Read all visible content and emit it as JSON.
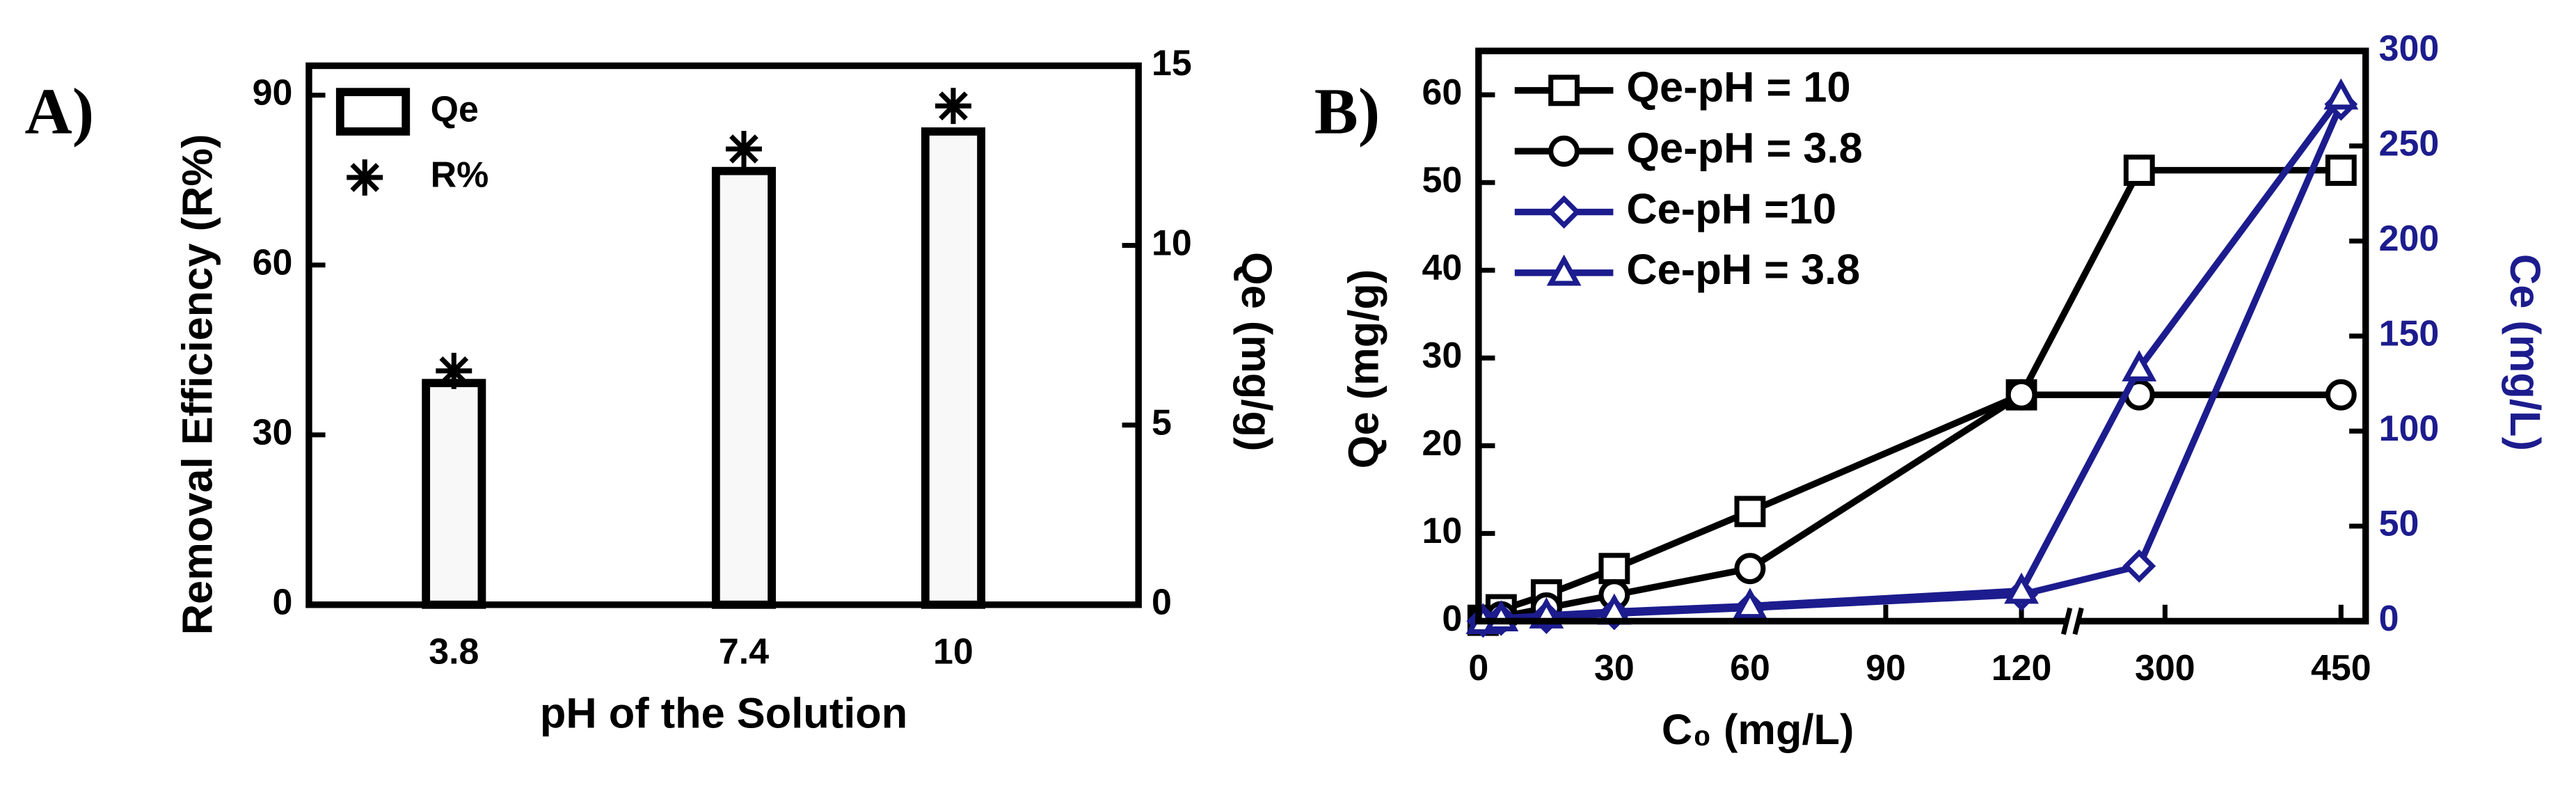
{
  "chart_data": [
    {
      "type": "bar",
      "label": "A)",
      "x_label": "pH of the Solution",
      "y_label": "Removal Efficiency (R%)",
      "y2_label": "Qe (mg/g)",
      "xlim": [
        2,
        12.3
      ],
      "xticks": [
        3.8,
        7.4,
        10
      ],
      "ylim": [
        0,
        95.2
      ],
      "yticks": [
        0,
        30,
        60,
        90
      ],
      "y2lim": [
        0,
        15
      ],
      "y2ticks": [
        0,
        5,
        10,
        15
      ],
      "categories": [
        3.8,
        7.4,
        10
      ],
      "series": [
        {
          "name": "Qe",
          "color": "#000000",
          "axis": "y2",
          "marker": "bar",
          "values": [
            6.17,
            12.07,
            13.17
          ]
        },
        {
          "name": "R%",
          "color": "#000000",
          "marker": "star",
          "values": [
            41.3,
            80.5,
            88.1
          ]
        }
      ]
    },
    {
      "type": "line",
      "label": "B)",
      "x_label": "C₀ (mg/L)",
      "y_label": "Qe (mg/g)",
      "y2_label": "Ce (mg/L)",
      "xlim": [
        0,
        471
      ],
      "xbreak": [
        130,
        226
      ],
      "xticks": [
        0,
        30,
        60,
        90,
        120,
        300,
        450
      ],
      "ylim": [
        0,
        65
      ],
      "yticks": [
        0,
        10,
        20,
        30,
        40,
        50,
        60
      ],
      "y2lim": [
        0,
        300
      ],
      "y2ticks": [
        0,
        50,
        100,
        150,
        200,
        250,
        300
      ],
      "x": [
        1,
        5,
        15,
        30,
        60,
        120,
        278,
        450
      ],
      "series": [
        {
          "name": "Qe-pH = 10",
          "color": "#000000",
          "marker": "square",
          "values": [
            0.1,
            1.3,
            3,
            6,
            12.5,
            25.8,
            51.4,
            51.4
          ]
        },
        {
          "name": "Qe-pH = 3.8",
          "color": "#000000",
          "marker": "circle",
          "values": [
            0.1,
            0.5,
            1.5,
            3,
            6,
            25.8,
            25.8,
            25.8
          ]
        },
        {
          "name": "Ce-pH =10",
          "color": "#1c1c8e",
          "axis": "y2",
          "marker": "diamond",
          "values": [
            0,
            1,
            2,
            4,
            7,
            14,
            29,
            272
          ]
        },
        {
          "name": "Ce-pH = 3.8",
          "color": "#1c1c8e",
          "axis": "y2",
          "marker": "triangle",
          "values": [
            0,
            1.5,
            3,
            5,
            8,
            16,
            133,
            276
          ]
        }
      ]
    }
  ]
}
